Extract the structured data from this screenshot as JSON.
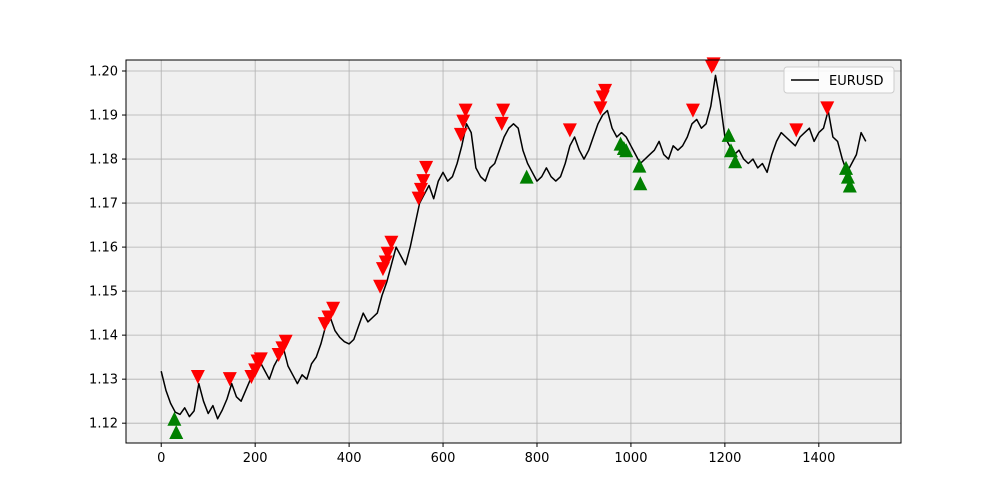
{
  "chart_data": {
    "type": "line",
    "title": "",
    "xlabel": "",
    "ylabel": "",
    "xlim": [
      -75,
      1575
    ],
    "ylim": [
      1.1155,
      1.2025
    ],
    "xticks": [
      0,
      200,
      400,
      600,
      800,
      1000,
      1200,
      1400
    ],
    "yticks": [
      1.12,
      1.13,
      1.14,
      1.15,
      1.16,
      1.17,
      1.18,
      1.19,
      1.2
    ],
    "ytick_labels": [
      "1.12",
      "1.13",
      "1.14",
      "1.15",
      "1.16",
      "1.17",
      "1.18",
      "1.19",
      "1.20"
    ],
    "grid": true,
    "legend_position": "top-right",
    "background_color": "#f0f0f0",
    "colors": {
      "line": "#000000",
      "sell_marker": "#ff0000",
      "buy_marker": "#008000"
    },
    "series": [
      {
        "name": "EURUSD",
        "kind": "line",
        "x": [
          0,
          10,
          20,
          30,
          40,
          50,
          60,
          70,
          80,
          90,
          100,
          110,
          120,
          130,
          140,
          150,
          160,
          170,
          180,
          190,
          200,
          210,
          220,
          230,
          240,
          250,
          260,
          270,
          280,
          290,
          300,
          310,
          320,
          330,
          340,
          350,
          360,
          370,
          380,
          390,
          400,
          410,
          420,
          430,
          440,
          450,
          460,
          470,
          480,
          490,
          500,
          510,
          520,
          530,
          540,
          550,
          560,
          570,
          580,
          590,
          600,
          610,
          620,
          630,
          640,
          650,
          660,
          670,
          680,
          690,
          700,
          710,
          720,
          730,
          740,
          750,
          760,
          770,
          780,
          790,
          800,
          810,
          820,
          830,
          840,
          850,
          860,
          870,
          880,
          890,
          900,
          910,
          920,
          930,
          940,
          950,
          960,
          970,
          980,
          990,
          1000,
          1010,
          1020,
          1030,
          1040,
          1050,
          1060,
          1070,
          1080,
          1090,
          1100,
          1110,
          1120,
          1130,
          1140,
          1150,
          1160,
          1170,
          1180,
          1190,
          1200,
          1210,
          1220,
          1230,
          1240,
          1250,
          1260,
          1270,
          1280,
          1290,
          1300,
          1310,
          1320,
          1330,
          1340,
          1350,
          1360,
          1370,
          1380,
          1390,
          1400,
          1410,
          1420,
          1430,
          1440,
          1450,
          1460,
          1470,
          1480,
          1490,
          1500
        ],
        "y": [
          1.1318,
          1.1275,
          1.1245,
          1.1225,
          1.122,
          1.1235,
          1.1215,
          1.1228,
          1.129,
          1.125,
          1.1222,
          1.124,
          1.121,
          1.123,
          1.1255,
          1.129,
          1.126,
          1.125,
          1.1275,
          1.13,
          1.133,
          1.134,
          1.132,
          1.13,
          1.133,
          1.135,
          1.1372,
          1.133,
          1.131,
          1.129,
          1.131,
          1.13,
          1.1335,
          1.135,
          1.138,
          1.142,
          1.144,
          1.141,
          1.1395,
          1.1385,
          1.138,
          1.139,
          1.142,
          1.145,
          1.143,
          1.144,
          1.145,
          1.149,
          1.152,
          1.156,
          1.16,
          1.158,
          1.156,
          1.16,
          1.165,
          1.17,
          1.172,
          1.174,
          1.171,
          1.175,
          1.177,
          1.175,
          1.176,
          1.179,
          1.183,
          1.188,
          1.186,
          1.178,
          1.176,
          1.175,
          1.178,
          1.179,
          1.182,
          1.185,
          1.187,
          1.188,
          1.187,
          1.182,
          1.179,
          1.177,
          1.175,
          1.176,
          1.178,
          1.176,
          1.175,
          1.176,
          1.179,
          1.183,
          1.185,
          1.182,
          1.18,
          1.182,
          1.185,
          1.188,
          1.19,
          1.191,
          1.187,
          1.185,
          1.186,
          1.185,
          1.183,
          1.181,
          1.179,
          1.18,
          1.181,
          1.182,
          1.184,
          1.181,
          1.18,
          1.183,
          1.182,
          1.183,
          1.185,
          1.188,
          1.189,
          1.187,
          1.188,
          1.192,
          1.199,
          1.193,
          1.185,
          1.183,
          1.181,
          1.182,
          1.18,
          1.179,
          1.18,
          1.178,
          1.179,
          1.177,
          1.181,
          1.184,
          1.186,
          1.185,
          1.184,
          1.183,
          1.185,
          1.186,
          1.187,
          1.184,
          1.186,
          1.187,
          1.191,
          1.185,
          1.184,
          1.18,
          1.177,
          1.179,
          1.181,
          1.186,
          1.184
        ]
      },
      {
        "name": "sell",
        "kind": "marker",
        "marker": "triangle-down",
        "x": [
          78,
          146,
          192,
          200,
          205,
          212,
          250,
          258,
          265,
          348,
          356,
          366,
          466,
          472,
          478,
          482,
          490,
          548,
          553,
          558,
          564,
          638,
          643,
          648,
          728,
          725,
          870,
          935,
          940,
          945,
          1132,
          1172,
          1176,
          1352,
          1418
        ],
        "y": [
          1.1305,
          1.13,
          1.1305,
          1.132,
          1.134,
          1.1345,
          1.1355,
          1.137,
          1.1385,
          1.1425,
          1.144,
          1.146,
          1.151,
          1.155,
          1.1565,
          1.1585,
          1.161,
          1.171,
          1.173,
          1.175,
          1.178,
          1.1855,
          1.1885,
          1.191,
          1.191,
          1.188,
          1.1865,
          1.1915,
          1.194,
          1.1955,
          1.191,
          1.201,
          1.2015,
          1.1865,
          1.1915
        ]
      },
      {
        "name": "buy",
        "kind": "marker",
        "marker": "triangle-up",
        "x": [
          28,
          32,
          778,
          978,
          985,
          990,
          1018,
          1020,
          1208,
          1213,
          1222,
          1458,
          1462,
          1466
        ],
        "y": [
          1.121,
          1.118,
          1.176,
          1.1835,
          1.1825,
          1.182,
          1.1785,
          1.1745,
          1.1855,
          1.182,
          1.1795,
          1.178,
          1.176,
          1.174
        ]
      }
    ]
  }
}
